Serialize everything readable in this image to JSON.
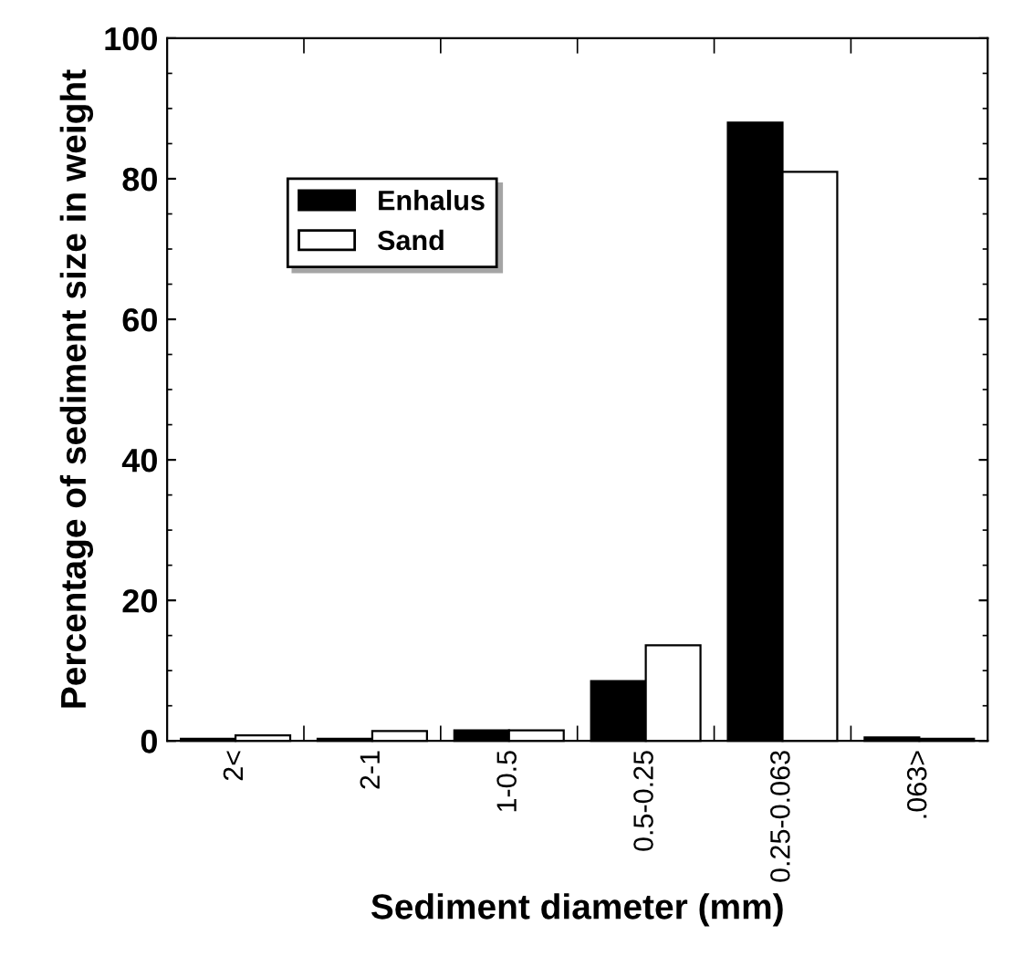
{
  "chart_data": {
    "type": "bar",
    "xlabel": "Sediment diameter (mm)",
    "ylabel": "Percentage of sediment size in weight",
    "categories": [
      "2<",
      "2-1",
      "1-0.5",
      "0.5-0.25",
      "0.25-0.063",
      ".063>"
    ],
    "series": [
      {
        "name": "Enhalus",
        "color": "#000000",
        "values": [
          0.3,
          0.3,
          1.5,
          8.5,
          88,
          0.5
        ]
      },
      {
        "name": "Sand",
        "color": "#ffffff",
        "values": [
          0.8,
          1.4,
          1.5,
          13.6,
          81,
          0.3
        ]
      }
    ],
    "ylim": [
      0,
      100
    ],
    "yticks": [
      0,
      20,
      40,
      60,
      80,
      100
    ],
    "grid": false,
    "legend": "top left"
  }
}
